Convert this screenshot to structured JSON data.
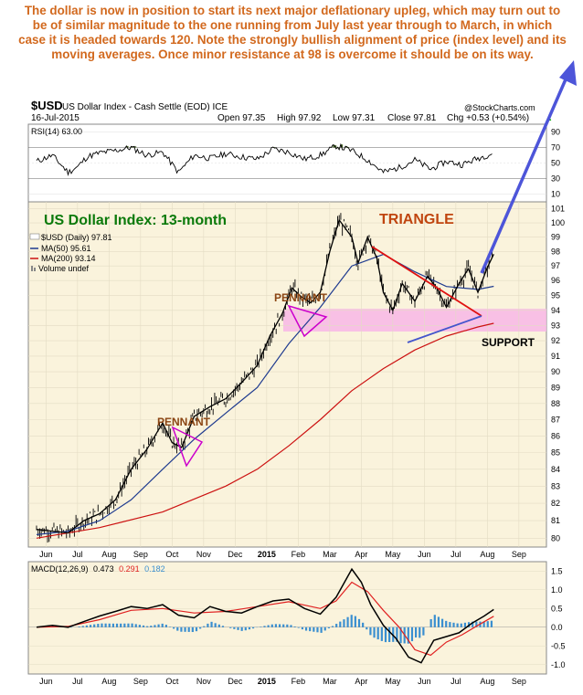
{
  "commentary": "The dollar is now in position to start its next major deflationary upleg, which may turn out to be of similar magnitude to the one running from July last year through to March, in which case it is headed towards 120. Note the strongly bullish alignment of price (index level) and its moving averages. Once minor resistance at 98 is overcome it should be on its way.",
  "header": {
    "symbol": "$USD",
    "name": "US Dollar Index - Cash Settle (EOD)  ICE",
    "watermark": "@StockCharts.com",
    "date": "16-Jul-2015",
    "open": "Open 97.35",
    "high": "High 97.92",
    "low": "Low 97.31",
    "close": "Close 97.81",
    "chg": "Chg +0.53 (+0.54%)",
    "chg_arrow": "▲"
  },
  "rsi_panel": {
    "label": "RSI(14) 63.00",
    "ticks": [
      "90",
      "70",
      "50",
      "30",
      "10"
    ]
  },
  "legend": {
    "price": "$USD (Daily) 97.81",
    "ma50": "MA(50) 95.61",
    "ma200": "MA(200) 93.14",
    "volume": "Volume undef"
  },
  "annotations": {
    "title": "US Dollar Index: 13-month",
    "triangle": "TRIANGLE",
    "pennant1": "PENNANT",
    "pennant2": "PENNANT",
    "support": "SUPPORT"
  },
  "macd_panel": {
    "label": "MACD(12,26,9)",
    "v1": "0.473",
    "v2": "0.291",
    "v3": "0.182",
    "ticks": [
      "1.5",
      "1.0",
      "0.5",
      "0.0",
      "-0.5",
      "-1.0"
    ]
  },
  "colors": {
    "commentary": "#d2691e",
    "price_bars": "#000000",
    "ma50": "#1f3b8f",
    "ma200": "#cc1111",
    "triangle_top": "#e01010",
    "triangle_bottom": "#4455cc",
    "pennant": "#cc00cc",
    "support_band": "#f7b6e6",
    "forecast_arrow": "#4d55d9",
    "rsi_line": "#000000",
    "rsi_fill_over": "#4a6b2a",
    "rsi_fill_under": "#6b8ab0",
    "macd": "#000000",
    "signal": "#e02020",
    "histogram": "#3a8fd0",
    "panel_bg": "#faf3dc"
  },
  "chart_data": {
    "type": "line",
    "title": "US Dollar Index: 13-month",
    "x_ticks": [
      "Jun",
      "Jul",
      "Aug",
      "Sep",
      "Oct",
      "Nov",
      "Dec",
      "2015",
      "Feb",
      "Mar",
      "Apr",
      "May",
      "Jun",
      "Jul",
      "Aug",
      "Sep"
    ],
    "y_ticks": [
      80,
      81,
      82,
      83,
      84,
      85,
      86,
      87,
      88,
      89,
      90,
      91,
      92,
      93,
      94,
      95,
      96,
      97,
      98,
      99,
      100,
      101
    ],
    "y_range": [
      79.5,
      101.5
    ],
    "scale": "log",
    "grid": true,
    "legend_position": "top-left",
    "price_series": {
      "name": "$USD (Daily) 97.81",
      "months": [
        0,
        0.5,
        1,
        1.5,
        2,
        2.5,
        3,
        3.5,
        4,
        4.3,
        4.6,
        5,
        5.5,
        6,
        6.5,
        7,
        7.4,
        7.8,
        8.1,
        8.4,
        8.7,
        9,
        9.3,
        9.6,
        10,
        10.2,
        10.5,
        10.8,
        11,
        11.3,
        11.6,
        12,
        12.4,
        12.7,
        13,
        13.4,
        13.7,
        14,
        14.3,
        14.5
      ],
      "values": [
        80.5,
        80.4,
        80.3,
        81.0,
        81.4,
        82.2,
        84.0,
        85.2,
        86.8,
        85.6,
        85.3,
        87.2,
        87.8,
        88.3,
        89.3,
        90.4,
        92.3,
        93.8,
        95.5,
        94.9,
        94.5,
        95.2,
        98.0,
        100.2,
        99.0,
        97.2,
        99.0,
        97.5,
        95.2,
        94.0,
        95.8,
        94.6,
        96.3,
        95.5,
        94.2,
        95.8,
        96.8,
        95.2,
        96.9,
        97.81
      ]
    },
    "ma50_series": {
      "name": "MA(50) 95.61",
      "months": [
        0,
        1,
        2,
        3,
        4,
        5,
        6,
        7,
        8,
        9,
        10,
        11,
        12,
        13,
        14,
        14.5
      ],
      "values": [
        80.2,
        80.4,
        81.0,
        82.2,
        84.0,
        85.8,
        87.4,
        89.0,
        91.8,
        94.2,
        97.0,
        97.8,
        96.6,
        95.6,
        95.4,
        95.61
      ]
    },
    "ma200_series": {
      "name": "MA(200) 93.14",
      "months": [
        0,
        2,
        4,
        6,
        7,
        8,
        9,
        10,
        11,
        12,
        13,
        14,
        14.5
      ],
      "values": [
        80.0,
        80.6,
        81.5,
        83.0,
        84.0,
        85.4,
        87.0,
        88.8,
        90.2,
        91.4,
        92.3,
        92.9,
        93.14
      ]
    },
    "rsi_series": {
      "name": "RSI(14) 63.00",
      "months": [
        0,
        0.5,
        1,
        1.3,
        1.6,
        2,
        2.5,
        3,
        3.5,
        4,
        4.5,
        5,
        5.5,
        6,
        6.5,
        7,
        7.5,
        8,
        8.5,
        9,
        9.5,
        10,
        10.5,
        11,
        11.5,
        12,
        12.5,
        13,
        13.5,
        14,
        14.5
      ],
      "values": [
        52,
        60,
        38,
        45,
        58,
        63,
        66,
        70,
        60,
        64,
        38,
        60,
        56,
        62,
        58,
        55,
        68,
        64,
        55,
        60,
        72,
        66,
        54,
        38,
        44,
        54,
        42,
        52,
        48,
        56,
        63
      ]
    },
    "macd_series": {
      "name": "MACD(12,26,9) 0.473",
      "months": [
        0,
        0.5,
        1,
        1.5,
        2,
        2.5,
        3,
        3.5,
        4,
        4.5,
        5,
        5.5,
        6,
        6.5,
        7,
        7.5,
        8,
        8.5,
        9,
        9.5,
        10,
        10.3,
        10.6,
        11,
        11.4,
        11.8,
        12.2,
        12.6,
        13,
        13.4,
        13.8,
        14.2,
        14.5
      ],
      "values": [
        0.0,
        0.05,
        0.0,
        0.15,
        0.3,
        0.42,
        0.55,
        0.5,
        0.6,
        0.32,
        0.25,
        0.55,
        0.42,
        0.38,
        0.55,
        0.7,
        0.75,
        0.5,
        0.35,
        0.8,
        1.55,
        1.2,
        0.6,
        0.05,
        -0.3,
        -0.8,
        -0.95,
        -0.35,
        -0.25,
        -0.15,
        0.1,
        0.3,
        0.473
      ]
    },
    "signal_series": {
      "name": "0.291",
      "months": [
        0,
        1,
        2,
        3,
        4,
        5,
        6,
        7,
        8,
        9,
        9.5,
        10,
        10.5,
        11,
        11.5,
        12,
        12.5,
        13,
        13.5,
        14,
        14.5
      ],
      "values": [
        0.0,
        0.02,
        0.2,
        0.45,
        0.5,
        0.38,
        0.42,
        0.55,
        0.68,
        0.5,
        0.7,
        1.2,
        0.95,
        0.45,
        0.0,
        -0.6,
        -0.75,
        -0.4,
        -0.2,
        0.05,
        0.291
      ]
    },
    "macd_y_range": [
      -1.25,
      1.75
    ],
    "rsi_y_range": [
      0,
      100
    ]
  }
}
